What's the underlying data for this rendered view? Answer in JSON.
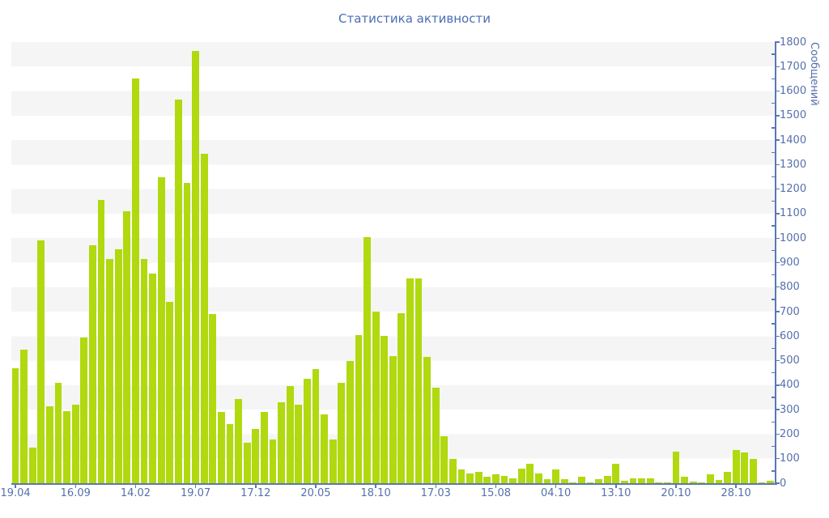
{
  "chart_data": {
    "type": "bar",
    "title": "Статистика активности",
    "ylabel": "Сообщений",
    "xlabel": "",
    "ylim": [
      0,
      1800
    ],
    "y_tick_step": 100,
    "y_minor_tick_step": 50,
    "legend": false,
    "grid": "alternating-horizontal-bands",
    "x_tick_labels": [
      "19.04",
      "16.09",
      "14.02",
      "19.07",
      "17.12",
      "20.05",
      "18.10",
      "17.03",
      "15.08",
      "04.10",
      "13.10",
      "20.10",
      "28.10"
    ],
    "x_tick_bar_indices": [
      0,
      7,
      14,
      21,
      28,
      35,
      42,
      49,
      56,
      63,
      70,
      77,
      84
    ],
    "values": [
      470,
      545,
      145,
      990,
      315,
      410,
      295,
      320,
      595,
      970,
      1155,
      915,
      955,
      1110,
      1650,
      915,
      855,
      1250,
      740,
      1565,
      1225,
      1765,
      1345,
      690,
      290,
      240,
      345,
      165,
      220,
      290,
      180,
      330,
      395,
      320,
      425,
      465,
      280,
      180,
      410,
      500,
      605,
      1005,
      700,
      600,
      520,
      695,
      835,
      835,
      515,
      390,
      190,
      100,
      55,
      40,
      45,
      25,
      35,
      30,
      20,
      60,
      80,
      40,
      15,
      55,
      15,
      5,
      25,
      5,
      15,
      30,
      80,
      10,
      20,
      20,
      20,
      5,
      5,
      130,
      25,
      8,
      5,
      35,
      12,
      45,
      135,
      125,
      100,
      5,
      10
    ],
    "colors": {
      "bar": "#b0d90f",
      "tick_label": "#5570ab",
      "title": "#4a6db5",
      "axis_line": "#5b77b5",
      "stripe": "#f5f5f5",
      "background": "#ffffff"
    }
  }
}
